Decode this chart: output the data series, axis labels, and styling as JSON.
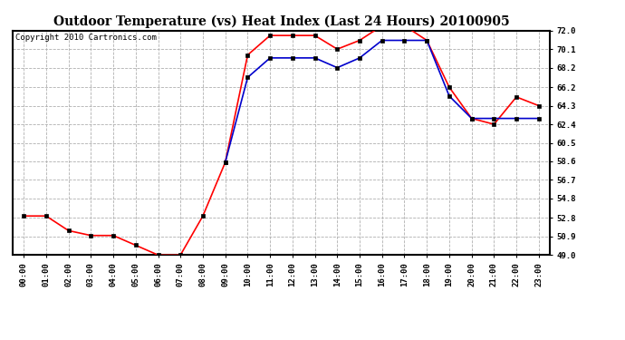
{
  "title": "Outdoor Temperature (vs) Heat Index (Last 24 Hours) 20100905",
  "copyright_text": "Copyright 2010 Cartronics.com",
  "hours": [
    "00:00",
    "01:00",
    "02:00",
    "03:00",
    "04:00",
    "05:00",
    "06:00",
    "07:00",
    "08:00",
    "09:00",
    "10:00",
    "11:00",
    "12:00",
    "13:00",
    "14:00",
    "15:00",
    "16:00",
    "17:00",
    "18:00",
    "19:00",
    "20:00",
    "21:00",
    "22:00",
    "23:00"
  ],
  "temp_red": [
    53.0,
    53.0,
    51.5,
    51.0,
    51.0,
    50.0,
    49.0,
    49.0,
    53.0,
    58.5,
    69.5,
    71.5,
    71.5,
    71.5,
    70.1,
    71.0,
    72.5,
    72.5,
    71.0,
    66.2,
    63.0,
    62.4,
    65.2,
    64.3
  ],
  "temp_blue": [
    null,
    null,
    null,
    null,
    null,
    null,
    null,
    null,
    null,
    58.5,
    67.2,
    69.2,
    69.2,
    69.2,
    68.2,
    69.2,
    71.0,
    71.0,
    71.0,
    65.3,
    63.0,
    63.0,
    63.0,
    63.0
  ],
  "ylim_min": 49.0,
  "ylim_max": 72.0,
  "yticks": [
    49.0,
    50.9,
    52.8,
    54.8,
    56.7,
    58.6,
    60.5,
    62.4,
    64.3,
    66.2,
    68.2,
    70.1,
    72.0
  ],
  "red_color": "#ff0000",
  "blue_color": "#0000cc",
  "grid_color": "#b0b0b0",
  "background_color": "#ffffff",
  "plot_bg_color": "#ffffff",
  "title_fontsize": 10,
  "copyright_fontsize": 6.5,
  "tick_fontsize": 6.5,
  "marker_size": 3.0,
  "line_width": 1.2
}
